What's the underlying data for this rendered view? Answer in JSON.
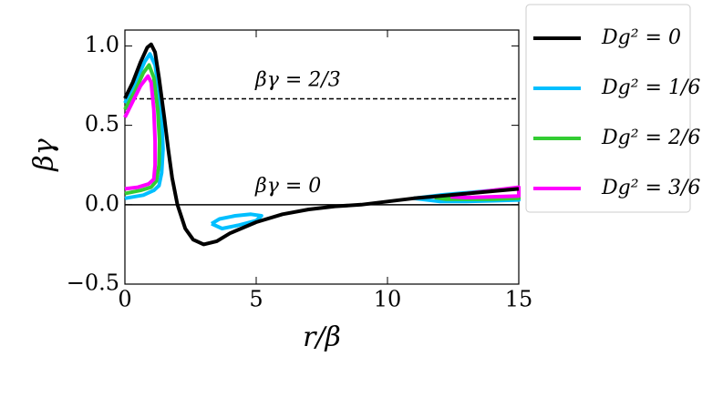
{
  "chart_data": {
    "type": "line",
    "xlabel": "r/β",
    "ylabel": "βγ",
    "xlim": [
      0,
      15
    ],
    "ylim": [
      -0.5,
      1.1
    ],
    "xticks": [
      0,
      5,
      10,
      15
    ],
    "yticks": [
      {
        "value": -0.5,
        "label": "−0.5"
      },
      {
        "value": 0,
        "label": "0.0"
      },
      {
        "value": 0.5,
        "label": "0.5"
      },
      {
        "value": 1,
        "label": "1.0"
      }
    ],
    "hlines": [
      {
        "y": 0.667,
        "label": "βγ = 2/3",
        "style": "dashed"
      },
      {
        "y": 0,
        "label": "βγ = 0",
        "style": "solid"
      }
    ],
    "legend": "outside right",
    "series": [
      {
        "name": "Dg² = 0",
        "color": "#000000",
        "x": [
          0,
          0.3,
          0.6,
          0.85,
          1.0,
          1.15,
          1.3,
          1.5,
          1.65,
          1.8,
          2.0,
          2.3,
          2.6,
          3.0,
          3.5,
          4,
          5,
          6,
          7,
          8,
          9,
          10,
          11,
          12,
          13,
          14,
          15
        ],
        "y": [
          0.67,
          0.77,
          0.9,
          0.99,
          1.01,
          0.96,
          0.8,
          0.55,
          0.35,
          0.17,
          0.0,
          -0.15,
          -0.22,
          -0.25,
          -0.23,
          -0.18,
          -0.11,
          -0.06,
          -0.03,
          -0.01,
          0.0,
          0.02,
          0.04,
          0.055,
          0.07,
          0.085,
          0.1
        ]
      },
      {
        "name": "Dg² = 1/6",
        "color": "#00bfff",
        "x": [
          0,
          0.4,
          0.75,
          0.95,
          1.15,
          1.3,
          1.4,
          1.45,
          1.4,
          1.3,
          1.1,
          0.7,
          0,
          null,
          3.3,
          3.6,
          4.2,
          4.8,
          5.2,
          5.0,
          4.3,
          3.7,
          3.3,
          null,
          11.0,
          12,
          13,
          14,
          15,
          15,
          14,
          13,
          12,
          11.0
        ],
        "y": [
          0.64,
          0.77,
          0.9,
          0.95,
          0.88,
          0.72,
          0.55,
          0.35,
          0.2,
          0.12,
          0.09,
          0.06,
          0.04,
          null,
          -0.12,
          -0.09,
          -0.07,
          -0.06,
          -0.07,
          -0.1,
          -0.13,
          -0.15,
          -0.12,
          null,
          0.04,
          0.06,
          0.075,
          0.09,
          0.105,
          0.03,
          0.025,
          0.02,
          0.02,
          0.04
        ]
      },
      {
        "name": "Dg² = 2/6",
        "color": "#33cc33",
        "x": [
          0,
          0.4,
          0.7,
          0.92,
          1.1,
          1.25,
          1.32,
          1.3,
          1.2,
          1.0,
          0.6,
          0,
          null,
          11.8,
          12.5,
          13.5,
          14.5,
          15,
          15,
          14,
          13,
          12.2,
          11.8
        ],
        "y": [
          0.6,
          0.72,
          0.83,
          0.88,
          0.8,
          0.6,
          0.4,
          0.25,
          0.15,
          0.11,
          0.09,
          0.07,
          null,
          0.045,
          0.06,
          0.08,
          0.095,
          0.105,
          0.04,
          0.035,
          0.035,
          0.035,
          0.045
        ]
      },
      {
        "name": "Dg² = 3/6",
        "color": "#ff00ff",
        "x": [
          0,
          0.3,
          0.6,
          0.88,
          1.0,
          1.1,
          1.15,
          1.15,
          1.1,
          0.9,
          0.5,
          0,
          null,
          12.4,
          13,
          14,
          15,
          15,
          14,
          13,
          12.4
        ],
        "y": [
          0.55,
          0.65,
          0.75,
          0.81,
          0.77,
          0.6,
          0.4,
          0.25,
          0.16,
          0.13,
          0.11,
          0.1,
          null,
          0.05,
          0.07,
          0.09,
          0.11,
          0.055,
          0.05,
          0.045,
          0.05
        ]
      }
    ]
  }
}
